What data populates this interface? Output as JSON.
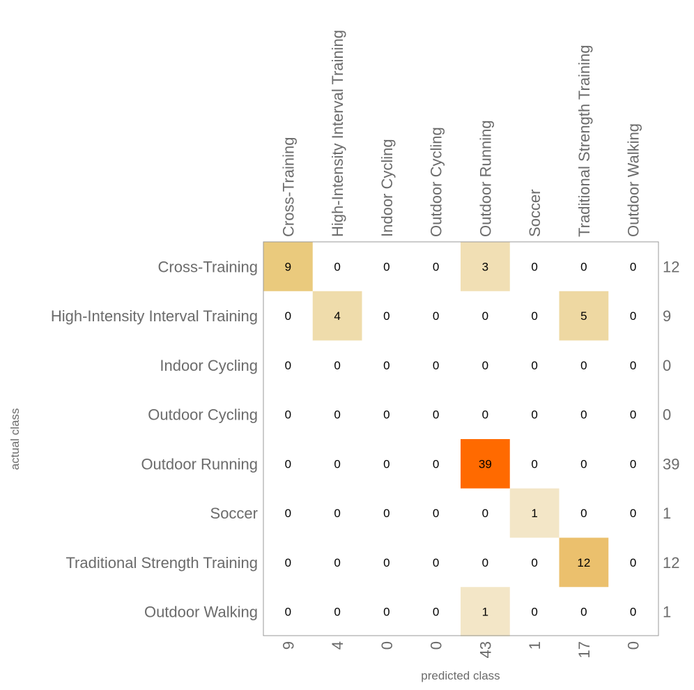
{
  "chart_data": {
    "type": "heatmap",
    "title": "",
    "xlabel": "predicted class",
    "ylabel": "actual class",
    "classes": [
      "Cross-Training",
      "High-Intensity Interval Training",
      "Indoor Cycling",
      "Outdoor Cycling",
      "Outdoor Running",
      "Soccer",
      "Traditional Strength Training",
      "Outdoor Walking"
    ],
    "matrix": [
      [
        9,
        0,
        0,
        0,
        3,
        0,
        0,
        0
      ],
      [
        0,
        4,
        0,
        0,
        0,
        0,
        5,
        0
      ],
      [
        0,
        0,
        0,
        0,
        0,
        0,
        0,
        0
      ],
      [
        0,
        0,
        0,
        0,
        0,
        0,
        0,
        0
      ],
      [
        0,
        0,
        0,
        0,
        39,
        0,
        0,
        0
      ],
      [
        0,
        0,
        0,
        0,
        0,
        1,
        0,
        0
      ],
      [
        0,
        0,
        0,
        0,
        0,
        0,
        12,
        0
      ],
      [
        0,
        0,
        0,
        0,
        1,
        0,
        0,
        0
      ]
    ],
    "row_totals": [
      "12",
      "9",
      "0",
      "0",
      "39",
      "1",
      "12",
      "1"
    ],
    "column_totals": [
      "9",
      "4",
      "0",
      "0",
      "43",
      "1",
      "17",
      "0"
    ],
    "colors": {
      "zero": "#ffffff",
      "low": "#f4ead0",
      "mid": "#e9c776",
      "high": "#ff6a00",
      "frame": "#9a9a9a",
      "label": "#6b6b6b"
    }
  }
}
